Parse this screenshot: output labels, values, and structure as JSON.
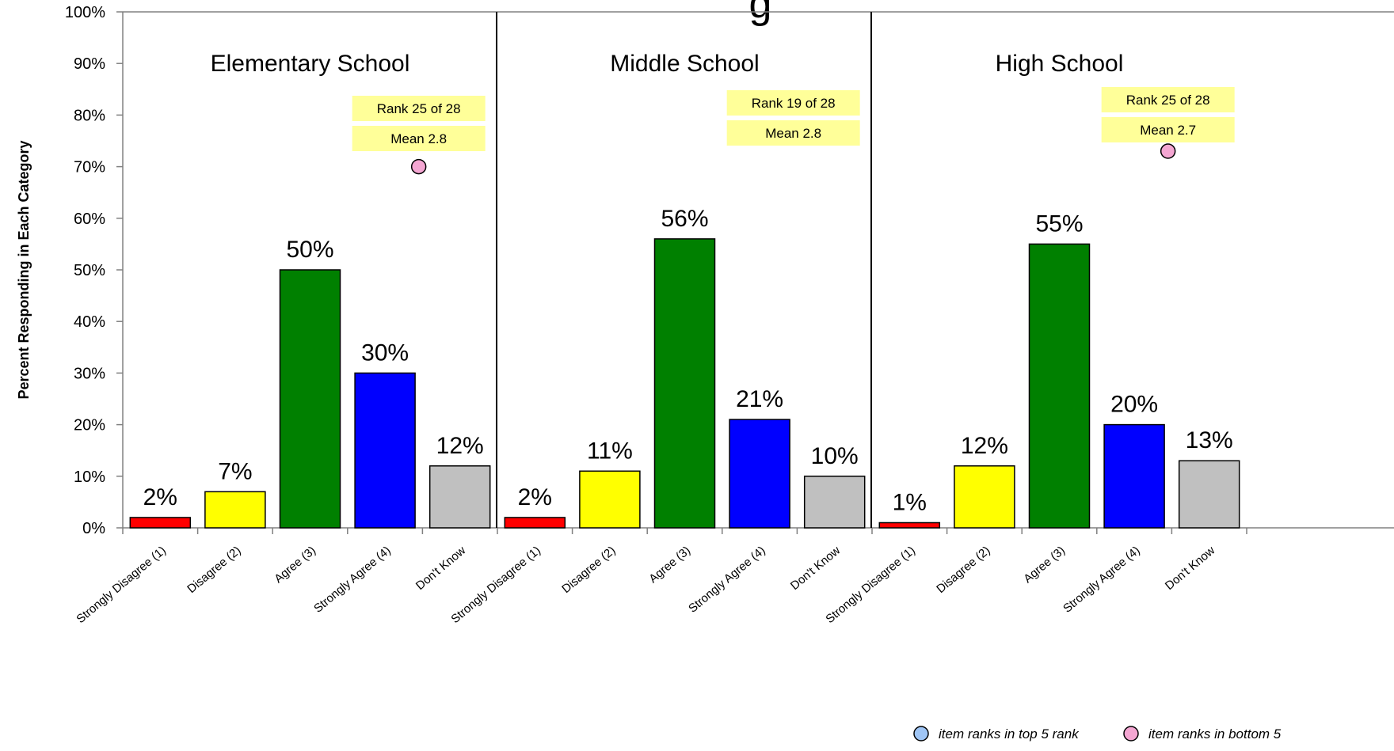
{
  "chart_data": {
    "type": "bar",
    "title": "g",
    "ylabel": "Percent Responding in Each Category",
    "ylim": [
      0,
      100
    ],
    "y_ticks": [
      "0%",
      "10%",
      "20%",
      "30%",
      "40%",
      "50%",
      "60%",
      "70%",
      "80%",
      "90%",
      "100%"
    ],
    "categories": [
      "Strongly Disagree (1)",
      "Disagree (2)",
      "Agree (3)",
      "Strongly Agree (4)",
      "Don't Know"
    ],
    "category_colors": [
      "#ff0000",
      "#ffff00",
      "#008000",
      "#0000ff",
      "#c0c0c0"
    ],
    "panels": [
      {
        "name": "Elementary School",
        "values": [
          2,
          7,
          50,
          30,
          12
        ],
        "value_labels": [
          "2%",
          "7%",
          "50%",
          "30%",
          "12%"
        ],
        "rank": "Rank 25 of 28",
        "mean": "Mean 2.8",
        "marker": {
          "type": "bottom 5",
          "value": 70
        }
      },
      {
        "name": "Middle School",
        "values": [
          2,
          11,
          56,
          21,
          10
        ],
        "value_labels": [
          "2%",
          "11%",
          "56%",
          "21%",
          "10%"
        ],
        "rank": "Rank 19 of 28",
        "mean": "Mean 2.8",
        "marker": null
      },
      {
        "name": "High School",
        "values": [
          1,
          12,
          55,
          20,
          13
        ],
        "value_labels": [
          "1%",
          "12%",
          "55%",
          "20%",
          "13%"
        ],
        "rank": "Rank 25 of 28",
        "mean": "Mean 2.7",
        "marker": {
          "type": "bottom 5",
          "value": 73
        }
      }
    ],
    "legend": [
      {
        "label": "item ranks in top 5 rank",
        "color": "#9fc5f5"
      },
      {
        "label": "item ranks in bottom 5",
        "color": "#f4a6d2"
      }
    ],
    "box_color": "#ffff99"
  }
}
